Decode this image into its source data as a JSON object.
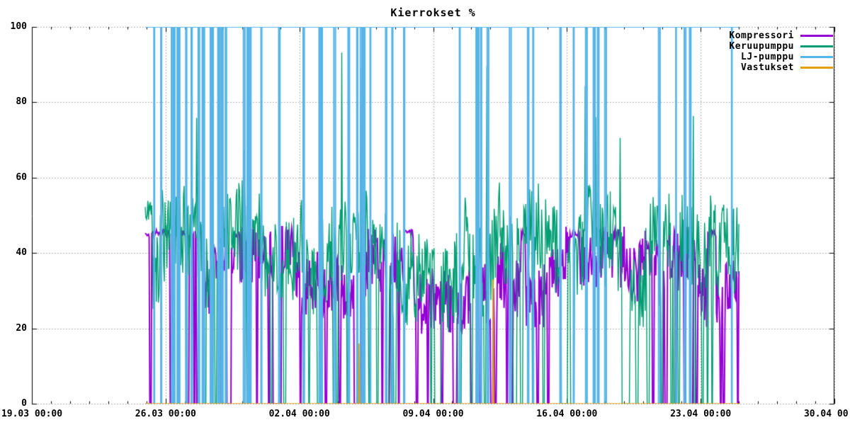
{
  "page": {
    "background": "#ffffff",
    "plot_border_color": "#000000"
  },
  "chart_data": {
    "type": "line",
    "title": "Kierrokset %",
    "x_axis": {
      "tick_labels": [
        "19.03 00:00",
        "26.03 00:00",
        "02.04 00:00",
        "09.04 00:00",
        "16.04 00:00",
        "23.04 00:00",
        "30.04 00:00"
      ],
      "major_tick_interval_days": 7,
      "minor_tick_interval_days": 1,
      "total_days": 42
    },
    "y_axis": {
      "tick_labels": [
        "0",
        "20",
        "40",
        "60",
        "80",
        "100"
      ],
      "tick_values": [
        0,
        20,
        40,
        60,
        80,
        100
      ],
      "min": 0,
      "max": 100
    },
    "grid": {
      "style": "dotted",
      "color": "#9b9b9b",
      "horizontal_at": [
        0,
        20,
        40,
        60,
        80,
        100
      ],
      "vertical_at_major_ticks": true
    },
    "legend": {
      "position": "top-right-inside",
      "entries": [
        "Kompressori",
        "Keruupumppu",
        "LJ-pumppu",
        "Vastukset"
      ]
    },
    "data_window": {
      "start_day": 5.93,
      "end_day": 37.0,
      "start_approx": "25.03 00:00",
      "end_approx": "25.04 00:00"
    },
    "series": [
      {
        "name": "Kompressori",
        "color": "#9400d3",
        "line_width": 2,
        "summary": "Compressor speed: steady ~45% plateau for first ~3 days, then noisy 20-45% band slightly below Keruupumppu with frequent brief drops to 0%",
        "gen": {
          "kind": "noisy",
          "seed": 41,
          "samples": 900,
          "wander_min": 26,
          "wander_max": 41,
          "wander_step": 2.2,
          "jitter": 8,
          "off_prob": 0.035,
          "off_len": [
            1,
            3
          ],
          "gap_prob": 0.005,
          "gap_len": [
            4,
            10
          ],
          "spike_prob": 0.004,
          "spike_range": [
            42,
            47
          ],
          "plateau_until": 0.1,
          "plateau_value": 45.2,
          "plateau_jitter": 1.0,
          "plateau_prob": 0.012,
          "plateau_len": [
            6,
            16
          ],
          "clamp_max": 47
        }
      },
      {
        "name": "Keruupumppu",
        "color": "#009e73",
        "line_width": 1.4,
        "summary": "Collector pump speed: dense noisy 20-60% band (mean ~38%), frequent brief drops to 0%, occasional spikes up to ~60-95%",
        "gen": {
          "kind": "noisy",
          "seed": 7,
          "samples": 900,
          "wander_min": 30,
          "wander_max": 47,
          "wander_step": 2.6,
          "jitter": 12,
          "off_prob": 0.05,
          "off_len": [
            1,
            3
          ],
          "gap_prob": 0.006,
          "gap_len": [
            5,
            12
          ],
          "spike_prob": 0.009,
          "spike_range": [
            58,
            95
          ],
          "plateau_until": 0.012,
          "plateau_value": 51,
          "plateau_jitter": 3,
          "plateau_prob": 0,
          "plateau_len": [
            0,
            0
          ],
          "clamp_max": 96
        }
      },
      {
        "name": "LJ-pumppu",
        "color": "#56b4e9",
        "line_width": 2,
        "summary": "Heating-circuit pump: constant 100% with ~60 brief vertical drops to 0%",
        "gen": {
          "kind": "dropline",
          "seed": 13,
          "level": 100,
          "drop_count": 60,
          "drop_len_days": [
            0.02,
            0.09
          ]
        }
      },
      {
        "name": "Vastukset",
        "color": "#e69f00",
        "line_width": 1.6,
        "summary": "Resistive heaters: 0% throughout except two brief spikes (~16% and ~33%)",
        "gen": {
          "kind": "baseline_spikes",
          "level": 0,
          "spikes": [
            {
              "at_fraction": 0.36,
              "value": 16
            },
            {
              "at_fraction": 0.586,
              "value": 33
            }
          ]
        }
      }
    ]
  }
}
